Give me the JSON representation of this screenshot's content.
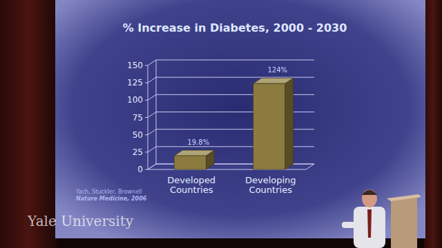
{
  "chart_data": {
    "type": "bar",
    "title": "% Increase in Diabetes, 2000 - 2030",
    "categories": [
      "Developed Countries",
      "Developing Countries"
    ],
    "values": [
      19.8,
      124
    ],
    "value_labels": [
      "19.8%",
      "124%"
    ],
    "color": "#8c7b3e",
    "ylim": [
      0,
      150
    ],
    "yticks": [
      0,
      25,
      50,
      75,
      100,
      125,
      150
    ],
    "grid": true,
    "data_labels": true,
    "annotations": [
      "Yach, Stuckler, Brownell",
      "Nature Medicine, 2006"
    ]
  },
  "watermark": "Yale University"
}
